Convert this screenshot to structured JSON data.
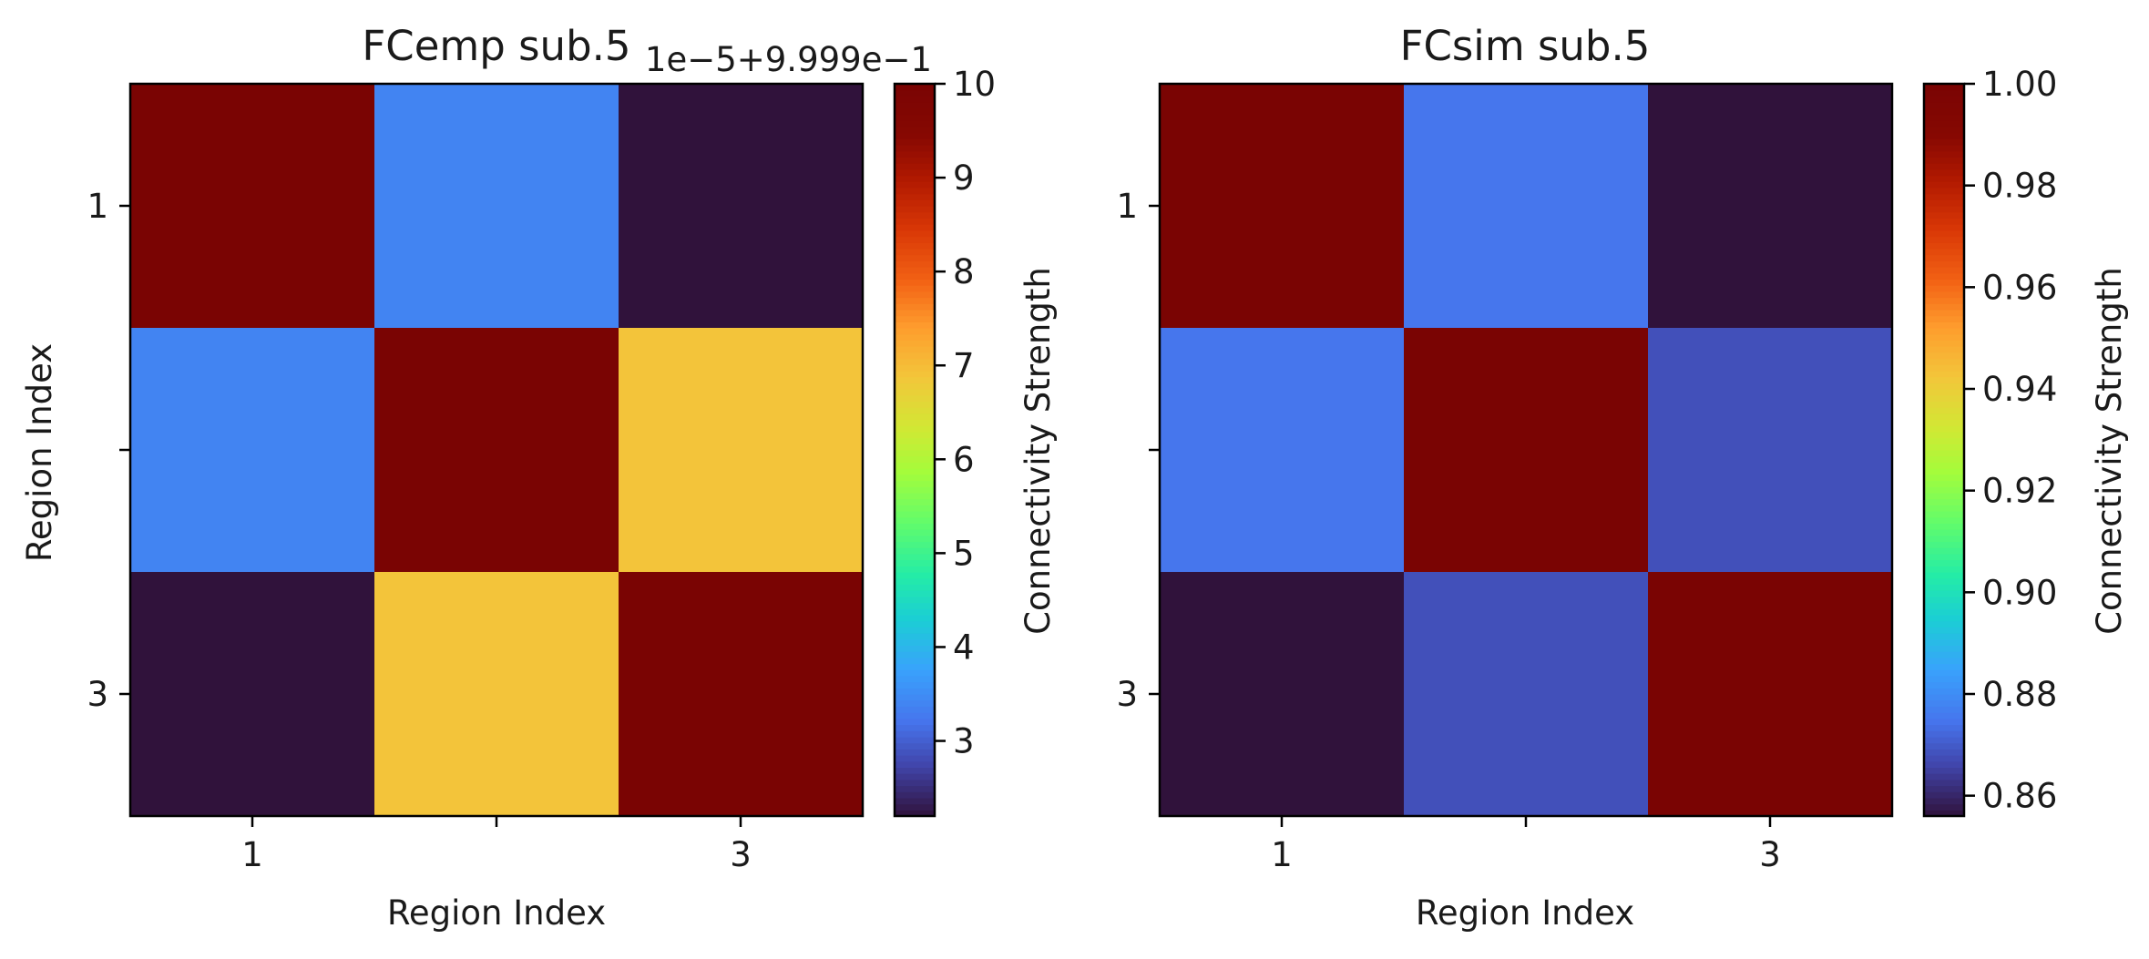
{
  "chart_data": [
    {
      "type": "heatmap",
      "title": "FCemp sub.5",
      "xlabel": "Region Index",
      "ylabel": "Region Index",
      "x_tick_labels": [
        "1",
        "",
        "3"
      ],
      "y_tick_labels": [
        "1",
        "",
        "3"
      ],
      "matrix": [
        [
          10.0,
          3.4,
          2.2
        ],
        [
          3.4,
          10.0,
          6.9
        ],
        [
          2.2,
          6.9,
          10.0
        ]
      ],
      "colorbar": {
        "label": "Connectivity Strength",
        "offset_text": "1e−5+9.999e−1",
        "range": [
          2.2,
          10.0
        ],
        "ticks": [
          "3",
          "4",
          "5",
          "6",
          "7",
          "8",
          "9",
          "10"
        ],
        "tick_values": [
          3,
          4,
          5,
          6,
          7,
          8,
          9,
          10
        ],
        "colormap": "turbo"
      }
    },
    {
      "type": "heatmap",
      "title": "FCsim sub.5",
      "xlabel": "Region Index",
      "ylabel": "",
      "x_tick_labels": [
        "1",
        "",
        "3"
      ],
      "y_tick_labels": [
        "1",
        "",
        "3"
      ],
      "matrix": [
        [
          1.0,
          0.875,
          0.856
        ],
        [
          0.875,
          1.0,
          0.868
        ],
        [
          0.856,
          0.868,
          1.0
        ]
      ],
      "colorbar": {
        "label": "Connectivity Strength",
        "offset_text": "",
        "range": [
          0.856,
          1.0
        ],
        "ticks": [
          "0.86",
          "0.88",
          "0.90",
          "0.92",
          "0.94",
          "0.96",
          "0.98",
          "1.00"
        ],
        "tick_values": [
          0.86,
          0.88,
          0.9,
          0.92,
          0.94,
          0.96,
          0.98,
          1.0
        ],
        "colormap": "turbo"
      }
    }
  ]
}
